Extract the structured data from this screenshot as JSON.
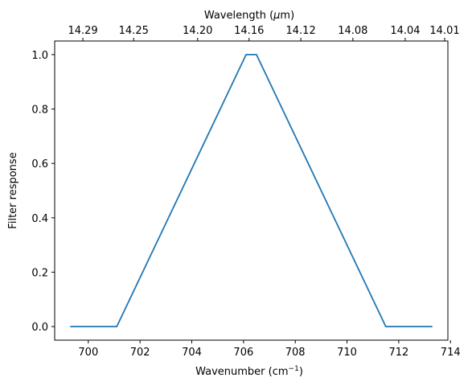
{
  "chart_data": {
    "type": "line",
    "title": "",
    "xlabel": "Wavenumber (cm",
    "xlabel_sup": "−1",
    "xlabel_end": ")",
    "ylabel": "Filter response",
    "top_xlabel": "Wavelength (",
    "top_xlabel_mu": "μ",
    "top_xlabel_end": "m)",
    "xlim": [
      698.7,
      713.9
    ],
    "ylim": [
      -0.05,
      1.05
    ],
    "xticks": [
      700,
      702,
      704,
      706,
      708,
      710,
      712,
      714
    ],
    "yticks": [
      0.0,
      0.2,
      0.4,
      0.6,
      0.8,
      1.0
    ],
    "top_ticks": [
      14.29,
      14.25,
      14.2,
      14.16,
      14.12,
      14.08,
      14.04,
      14.01
    ],
    "grid": false,
    "line_color": "#1f77b4",
    "series": [
      {
        "x": [
          699.3,
          701.1,
          706.1,
          706.5,
          711.5,
          713.3
        ],
        "y": [
          0.0,
          0.0,
          1.0,
          1.0,
          0.0,
          0.0
        ]
      }
    ]
  }
}
